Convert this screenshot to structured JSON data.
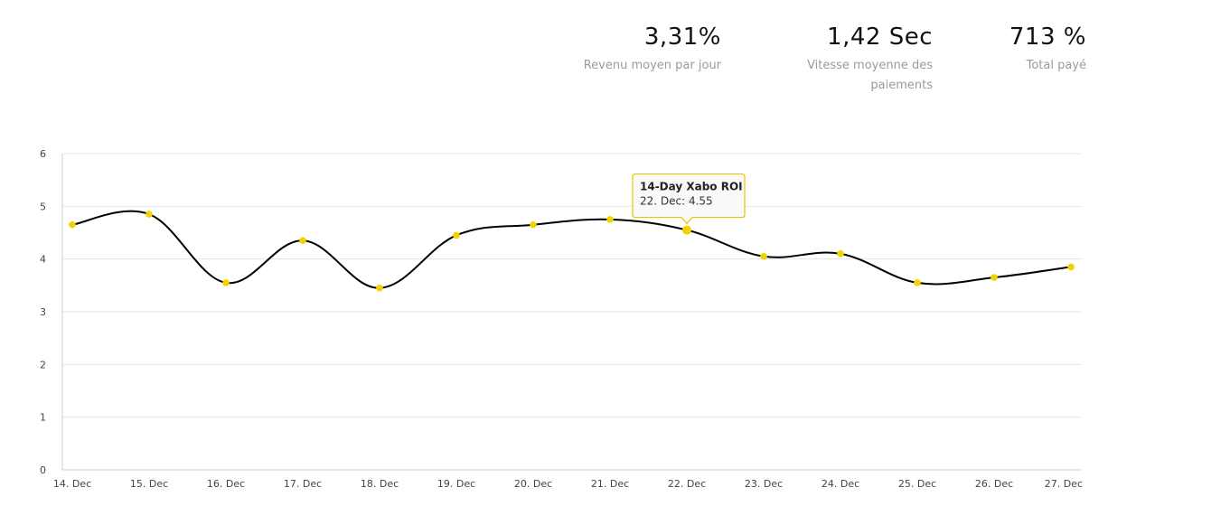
{
  "stats": [
    {
      "value": "3,31%",
      "label": "Revenu moyen par jour"
    },
    {
      "value": "1,42 Sec",
      "label": "Vitesse moyenne des paiements"
    },
    {
      "value": "713 %",
      "label": "Total payé"
    }
  ],
  "colors": {
    "line": "#000000",
    "point": "#f2d300",
    "grid": "#e6e6e6",
    "tooltip_border": "#e8c500",
    "tooltip_bg": "#f9f9f9"
  },
  "chart_data": {
    "type": "line",
    "title": "",
    "xlabel": "",
    "ylabel": "",
    "categories": [
      "14. Dec",
      "15. Dec",
      "16. Dec",
      "17. Dec",
      "18. Dec",
      "19. Dec",
      "20. Dec",
      "21. Dec",
      "22. Dec",
      "23. Dec",
      "24. Dec",
      "25. Dec",
      "26. Dec",
      "27. Dec"
    ],
    "series": [
      {
        "name": "14-Day Xabo ROI",
        "values": [
          4.65,
          4.85,
          3.55,
          4.35,
          3.45,
          4.45,
          4.65,
          4.75,
          4.55,
          4.05,
          4.1,
          3.55,
          3.65,
          3.85
        ]
      }
    ],
    "ylim": [
      0,
      6
    ],
    "yticks": [
      0,
      1,
      2,
      3,
      4,
      5,
      6
    ],
    "grid": true,
    "legend": "none",
    "tooltip": {
      "title": "14-Day Xabo ROI",
      "body": "22. Dec: 4.55",
      "index": 8
    }
  }
}
